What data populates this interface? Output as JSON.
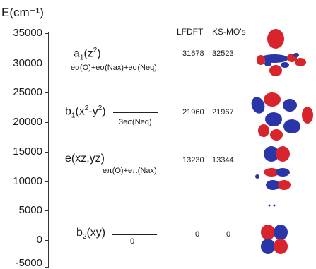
{
  "axis": {
    "title": "E(cm⁻¹)",
    "ticks": [
      "35000",
      "30000",
      "25000",
      "20000",
      "15000",
      "10000",
      "5000",
      "0",
      "-5000"
    ]
  },
  "columns": {
    "lfdft": "LFDFT",
    "ksmo": "KS-MO's"
  },
  "levels": [
    {
      "id": "a1",
      "label": {
        "main": "a",
        "sub": "1",
        "rest": "(z",
        "sup": "2",
        "end": ")"
      },
      "contribution": "eσ(O)+eσ(Nax)+eσ(Neq)",
      "lfdft": "31678",
      "ksmo": "32523",
      "orbital_icon": "dz2-orbital-icon"
    },
    {
      "id": "b1",
      "label": {
        "main": "b",
        "sub": "1",
        "rest": "(x",
        "sup": "2",
        "mid": "-y",
        "sup2": "2",
        "end": ")"
      },
      "contribution": "3eσ(Neq)",
      "lfdft": "21960",
      "ksmo": "21967",
      "orbital_icon": "dx2-y2-orbital-icon"
    },
    {
      "id": "e",
      "label": {
        "main": "e(xz,yz)"
      },
      "contribution": "eπ(O)+eπ(Nax)",
      "lfdft": "13230",
      "ksmo": "13344",
      "orbital_icon": "dxz-dyz-orbital-icon"
    },
    {
      "id": "b2",
      "label": {
        "main": "b",
        "sub": "2",
        "rest": "(xy)"
      },
      "contribution": "0",
      "lfdft": "0",
      "ksmo": "0",
      "orbital_icon": "dxy-orbital-icon"
    }
  ],
  "colors": {
    "lobe_positive": "#d8242c",
    "lobe_negative": "#2a35a8",
    "axis": "#333333"
  }
}
